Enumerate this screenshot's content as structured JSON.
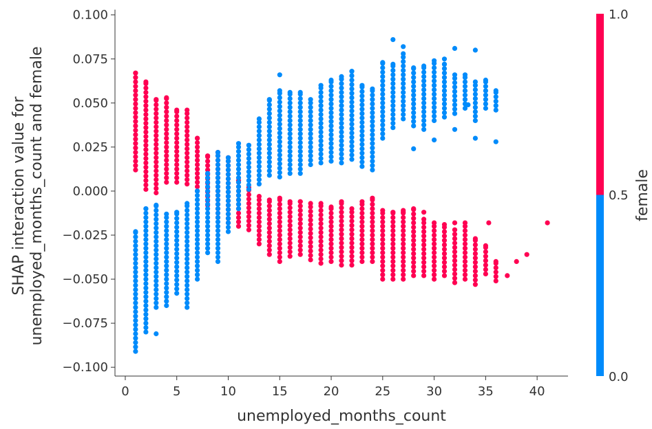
{
  "chart_data": {
    "type": "scatter",
    "xlabel": "unemployed_months_count",
    "ylabel_lines": [
      "SHAP interaction value for",
      "unemployed_months_count and female"
    ],
    "xlim": [
      -1,
      43
    ],
    "ylim": [
      -0.105,
      0.103
    ],
    "x_ticks": [
      0,
      5,
      10,
      15,
      20,
      25,
      30,
      35,
      40
    ],
    "y_ticks": [
      -0.1,
      -0.075,
      -0.05,
      -0.025,
      0.0,
      0.025,
      0.05,
      0.075,
      0.1
    ],
    "y_tick_labels": [
      "−0.100",
      "−0.075",
      "−0.050",
      "−0.025",
      "0.000",
      "0.025",
      "0.050",
      "0.075",
      "0.100"
    ],
    "x_tick_labels": [
      "0",
      "5",
      "10",
      "15",
      "20",
      "25",
      "30",
      "35",
      "40"
    ],
    "colorbar": {
      "label": "female",
      "ticks": [
        "1.0",
        "0.5",
        "0.0"
      ],
      "colors": {
        "high": "#ff0052",
        "low": "#008bfb"
      }
    },
    "series": [
      {
        "value": 1.0,
        "color": "#ff0052",
        "columns": [
          {
            "x": 1,
            "min": 0.012,
            "max": 0.067
          },
          {
            "x": 2,
            "min": 0.001,
            "max": 0.062
          },
          {
            "x": 3,
            "min": -0.001,
            "max": 0.052
          },
          {
            "x": 4,
            "min": 0.005,
            "max": 0.053
          },
          {
            "x": 5,
            "min": 0.005,
            "max": 0.046
          },
          {
            "x": 6,
            "min": 0.004,
            "max": 0.046
          },
          {
            "x": 7,
            "min": 0.0,
            "max": 0.03
          },
          {
            "x": 8,
            "min": -0.008,
            "max": 0.02
          },
          {
            "x": 9,
            "min": -0.015,
            "max": 0.022
          },
          {
            "x": 10,
            "min": -0.018,
            "max": 0.019
          },
          {
            "x": 11,
            "min": -0.02,
            "max": 0.006
          },
          {
            "x": 12,
            "min": -0.022,
            "max": 0.002
          },
          {
            "x": 13,
            "min": -0.03,
            "max": -0.003
          },
          {
            "x": 14,
            "min": -0.036,
            "max": -0.005
          },
          {
            "x": 15,
            "min": -0.04,
            "max": -0.004
          },
          {
            "x": 16,
            "min": -0.037,
            "max": -0.006
          },
          {
            "x": 17,
            "min": -0.036,
            "max": -0.006
          },
          {
            "x": 18,
            "min": -0.039,
            "max": -0.007
          },
          {
            "x": 19,
            "min": -0.041,
            "max": -0.007
          },
          {
            "x": 20,
            "min": -0.04,
            "max": -0.009
          },
          {
            "x": 21,
            "min": -0.042,
            "max": -0.006
          },
          {
            "x": 22,
            "min": -0.042,
            "max": -0.01
          },
          {
            "x": 23,
            "min": -0.04,
            "max": -0.006
          },
          {
            "x": 24,
            "min": -0.04,
            "max": -0.004
          },
          {
            "x": 25,
            "min": -0.05,
            "max": -0.011
          },
          {
            "x": 26,
            "min": -0.05,
            "max": -0.012
          },
          {
            "x": 27,
            "min": -0.05,
            "max": -0.012
          },
          {
            "x": 28,
            "min": -0.048,
            "max": -0.01
          },
          {
            "x": 29,
            "min": -0.048,
            "max": -0.016
          },
          {
            "x": 30,
            "min": -0.05,
            "max": -0.018
          },
          {
            "x": 31,
            "min": -0.048,
            "max": -0.019
          },
          {
            "x": 32,
            "min": -0.052,
            "max": -0.022
          },
          {
            "x": 33,
            "min": -0.05,
            "max": -0.018
          },
          {
            "x": 34,
            "min": -0.053,
            "max": -0.027
          },
          {
            "x": 35,
            "min": -0.047,
            "max": -0.031
          },
          {
            "x": 36,
            "min": -0.051,
            "max": -0.04
          }
        ],
        "points": [
          {
            "x": 35.3,
            "y": -0.018
          },
          {
            "x": 37.1,
            "y": -0.048
          },
          {
            "x": 38.0,
            "y": -0.04
          },
          {
            "x": 39.0,
            "y": -0.036
          },
          {
            "x": 41.0,
            "y": -0.018
          },
          {
            "x": 29.0,
            "y": -0.012
          },
          {
            "x": 32.0,
            "y": -0.018
          },
          {
            "x": 27.0,
            "y": -0.011
          }
        ]
      },
      {
        "value": 0.0,
        "color": "#008bfb",
        "columns": [
          {
            "x": 1,
            "min": -0.091,
            "max": -0.023
          },
          {
            "x": 2,
            "min": -0.08,
            "max": -0.01
          },
          {
            "x": 3,
            "min": -0.066,
            "max": -0.008
          },
          {
            "x": 4,
            "min": -0.065,
            "max": -0.013
          },
          {
            "x": 5,
            "min": -0.058,
            "max": -0.012
          },
          {
            "x": 6,
            "min": -0.066,
            "max": -0.007
          },
          {
            "x": 7,
            "min": -0.05,
            "max": 0.0
          },
          {
            "x": 8,
            "min": -0.035,
            "max": 0.01
          },
          {
            "x": 9,
            "min": -0.04,
            "max": 0.022
          },
          {
            "x": 10,
            "min": -0.023,
            "max": 0.019
          },
          {
            "x": 11,
            "min": -0.01,
            "max": 0.027
          },
          {
            "x": 12,
            "min": 0.001,
            "max": 0.026
          },
          {
            "x": 13,
            "min": 0.004,
            "max": 0.041
          },
          {
            "x": 14,
            "min": 0.009,
            "max": 0.052
          },
          {
            "x": 15,
            "min": 0.008,
            "max": 0.057
          },
          {
            "x": 16,
            "min": 0.01,
            "max": 0.056
          },
          {
            "x": 17,
            "min": 0.01,
            "max": 0.056
          },
          {
            "x": 18,
            "min": 0.015,
            "max": 0.052
          },
          {
            "x": 19,
            "min": 0.016,
            "max": 0.06
          },
          {
            "x": 20,
            "min": 0.017,
            "max": 0.063
          },
          {
            "x": 21,
            "min": 0.016,
            "max": 0.065
          },
          {
            "x": 22,
            "min": 0.018,
            "max": 0.068
          },
          {
            "x": 23,
            "min": 0.014,
            "max": 0.06
          },
          {
            "x": 24,
            "min": 0.012,
            "max": 0.058
          },
          {
            "x": 25,
            "min": 0.03,
            "max": 0.073
          },
          {
            "x": 26,
            "min": 0.036,
            "max": 0.072
          },
          {
            "x": 27,
            "min": 0.041,
            "max": 0.078
          },
          {
            "x": 28,
            "min": 0.037,
            "max": 0.07
          },
          {
            "x": 29,
            "min": 0.035,
            "max": 0.071
          },
          {
            "x": 30,
            "min": 0.04,
            "max": 0.074
          },
          {
            "x": 31,
            "min": 0.042,
            "max": 0.072
          },
          {
            "x": 32,
            "min": 0.044,
            "max": 0.066
          },
          {
            "x": 33,
            "min": 0.047,
            "max": 0.066
          },
          {
            "x": 34,
            "min": 0.04,
            "max": 0.062
          },
          {
            "x": 35,
            "min": 0.047,
            "max": 0.063
          },
          {
            "x": 36,
            "min": 0.046,
            "max": 0.057
          }
        ],
        "points": [
          {
            "x": 3.0,
            "y": -0.081
          },
          {
            "x": 26.0,
            "y": 0.086
          },
          {
            "x": 27.0,
            "y": 0.082
          },
          {
            "x": 31.0,
            "y": 0.075
          },
          {
            "x": 32.0,
            "y": 0.081
          },
          {
            "x": 34.0,
            "y": 0.08
          },
          {
            "x": 28.0,
            "y": 0.024
          },
          {
            "x": 30.0,
            "y": 0.029
          },
          {
            "x": 32.0,
            "y": 0.035
          },
          {
            "x": 34.0,
            "y": 0.03
          },
          {
            "x": 36.0,
            "y": 0.028
          },
          {
            "x": 15.0,
            "y": 0.066
          },
          {
            "x": 33.3,
            "y": 0.049
          }
        ]
      }
    ]
  }
}
